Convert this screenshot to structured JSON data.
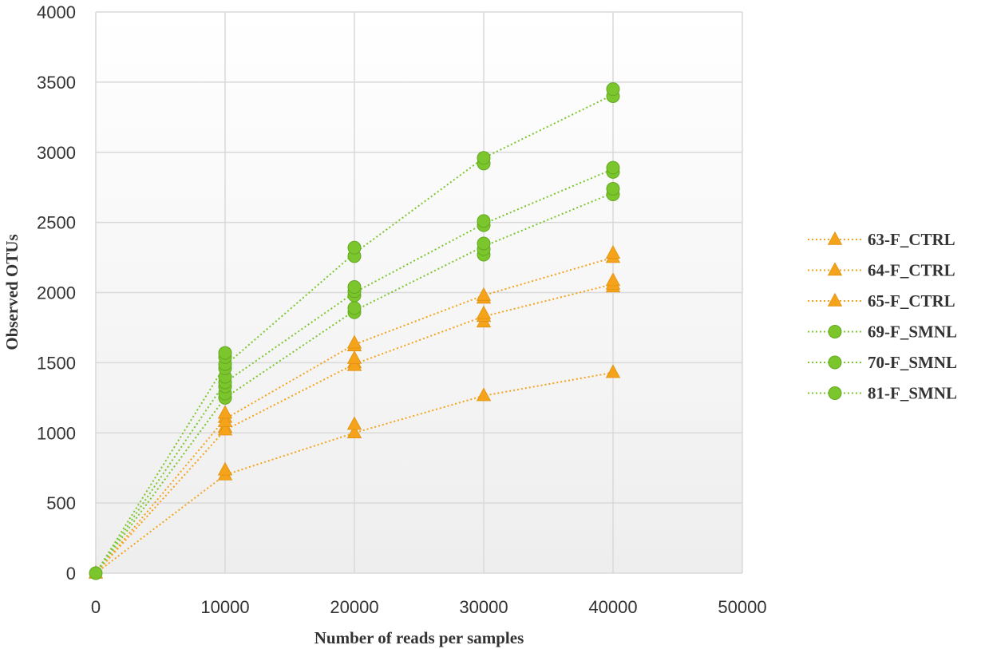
{
  "chart_data": {
    "type": "scatter",
    "xlabel": "Number of reads per samples",
    "ylabel": "Observed OTUs",
    "xlim": [
      0,
      50000
    ],
    "ylim": [
      0,
      4000
    ],
    "x_ticks": [
      0,
      10000,
      20000,
      30000,
      40000,
      50000
    ],
    "y_ticks": [
      0,
      500,
      1000,
      1500,
      2000,
      2500,
      3000,
      3500,
      4000
    ],
    "grid": true,
    "legend_position": "right",
    "colors": {
      "CTRL": "#f5a31a",
      "SMNL": "#7cc62d"
    },
    "series": [
      {
        "name": "63-F_CTRL",
        "group": "CTRL",
        "marker": "triangle",
        "x": [
          0,
          10000,
          10000,
          10000,
          20000,
          20000,
          20000,
          30000,
          30000,
          40000,
          40000
        ],
        "y": [
          0,
          700,
          735,
          1040,
          1000,
          1060,
          1500,
          1265,
          1790,
          1430,
          2040
        ]
      },
      {
        "name": "64-F_CTRL",
        "group": "CTRL",
        "marker": "triangle",
        "x": [
          10000,
          10000,
          20000,
          20000,
          30000,
          30000,
          40000,
          40000
        ],
        "y": [
          1020,
          1110,
          1480,
          1530,
          1830,
          1850,
          2060,
          2085
        ]
      },
      {
        "name": "65-F_CTRL",
        "group": "CTRL",
        "marker": "triangle",
        "x": [
          10000,
          10000,
          20000,
          20000,
          30000,
          30000,
          40000,
          40000
        ],
        "y": [
          1080,
          1140,
          1620,
          1640,
          1960,
          1980,
          2250,
          2280
        ]
      },
      {
        "name": "69-F_SMNL",
        "group": "SMNL",
        "marker": "circle",
        "x": [
          0,
          10000,
          10000,
          10000,
          20000,
          20000,
          20000,
          30000,
          30000,
          30000,
          40000,
          40000
        ],
        "y": [
          0,
          1250,
          1280,
          1330,
          1860,
          1890,
          1980,
          2270,
          2310,
          2350,
          2700,
          2740
        ]
      },
      {
        "name": "70-F_SMNL",
        "group": "SMNL",
        "marker": "circle",
        "x": [
          10000,
          10000,
          10000,
          20000,
          20000,
          30000,
          30000,
          40000,
          40000
        ],
        "y": [
          1360,
          1400,
          1460,
          2010,
          2040,
          2480,
          2510,
          2860,
          2890
        ]
      },
      {
        "name": "81-F_SMNL",
        "group": "SMNL",
        "marker": "circle",
        "x": [
          10000,
          10000,
          10000,
          20000,
          20000,
          30000,
          30000,
          40000,
          40000
        ],
        "y": [
          1490,
          1540,
          1570,
          2260,
          2320,
          2920,
          2960,
          3400,
          3450
        ]
      }
    ],
    "trend_lines": [
      {
        "series": "63-F_CTRL",
        "x": [
          0,
          10000,
          20000,
          30000,
          40000
        ],
        "y": [
          0,
          700,
          1000,
          1265,
          1430
        ]
      },
      {
        "series": "64-F_CTRL",
        "x": [
          0,
          10000,
          20000,
          30000,
          40000
        ],
        "y": [
          0,
          1020,
          1490,
          1830,
          2060
        ]
      },
      {
        "series": "65-F_CTRL",
        "x": [
          0,
          10000,
          20000,
          30000,
          40000
        ],
        "y": [
          0,
          1100,
          1630,
          1980,
          2250
        ]
      },
      {
        "series": "69-F_SMNL",
        "x": [
          0,
          10000,
          20000,
          30000,
          40000
        ],
        "y": [
          0,
          1250,
          1870,
          2330,
          2710
        ]
      },
      {
        "series": "70-F_SMNL",
        "x": [
          0,
          10000,
          20000,
          30000,
          40000
        ],
        "y": [
          0,
          1360,
          2000,
          2490,
          2880
        ]
      },
      {
        "series": "81-F_SMNL",
        "x": [
          0,
          10000,
          20000,
          30000,
          40000
        ],
        "y": [
          0,
          1480,
          2280,
          2960,
          3410
        ]
      }
    ]
  }
}
